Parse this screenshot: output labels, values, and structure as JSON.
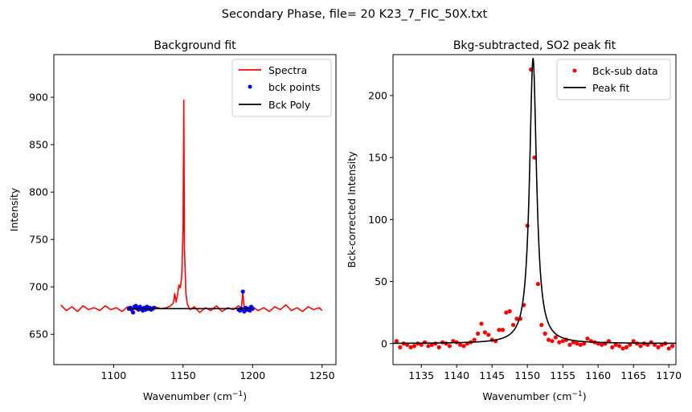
{
  "figure": {
    "suptitle": "Secondary Phase, file= 20 K23_7_FIC_50X.txt"
  },
  "chart_data": [
    {
      "type": "line",
      "title": "Background fit",
      "xlabel": "Wavenumber (cm$^{-1}$)",
      "xlabel_base": "Wavenumber (cm",
      "xlabel_sup": "−1",
      "xlabel_close": ")",
      "ylabel": "Intensity",
      "xlim": [
        1057,
        1260
      ],
      "ylim": [
        618,
        945
      ],
      "xticks": [
        1100,
        1150,
        1200,
        1250
      ],
      "yticks": [
        650,
        700,
        750,
        800,
        850,
        900
      ],
      "grid": false,
      "legend": "top-right",
      "series": [
        {
          "name": "Spectra",
          "style": "line",
          "color": "#ff0000",
          "x": [
            1062,
            1066,
            1070,
            1074,
            1078,
            1082,
            1086,
            1090,
            1094,
            1098,
            1102,
            1106,
            1110,
            1114,
            1118,
            1122,
            1126,
            1130,
            1134,
            1138,
            1141,
            1143,
            1144,
            1145,
            1146,
            1147,
            1148,
            1149,
            1150,
            1150.5,
            1151,
            1152,
            1153,
            1155,
            1158,
            1162,
            1166,
            1170,
            1174,
            1178,
            1182,
            1186,
            1190,
            1192,
            1193,
            1194,
            1196,
            1200,
            1204,
            1208,
            1212,
            1216,
            1220,
            1224,
            1228,
            1232,
            1236,
            1240,
            1244,
            1248,
            1250
          ],
          "y": [
            681,
            675,
            679,
            674,
            680,
            676,
            678,
            675,
            680,
            676,
            678,
            674,
            679,
            677,
            675,
            678,
            676,
            679,
            677,
            678,
            680,
            683,
            693,
            684,
            692,
            702,
            699,
            710,
            760,
            897,
            740,
            694,
            682,
            676,
            679,
            673,
            678,
            675,
            680,
            674,
            678,
            676,
            680,
            678,
            695,
            677,
            676,
            679,
            675,
            678,
            674,
            679,
            676,
            681,
            675,
            678,
            674,
            679,
            676,
            678,
            675
          ]
        },
        {
          "name": "bck points",
          "style": "markers",
          "color": "#0000ff",
          "x": [
            1111,
            1112,
            1113,
            1114,
            1115,
            1116,
            1117,
            1118,
            1119,
            1120,
            1121,
            1122,
            1123,
            1124,
            1125,
            1126,
            1127,
            1128,
            1129,
            1190,
            1191,
            1192,
            1193,
            1194,
            1195,
            1196,
            1197,
            1198,
            1199,
            1200
          ],
          "y": [
            677,
            678,
            676,
            673,
            679,
            680,
            678,
            676,
            679,
            677,
            675,
            678,
            676,
            679,
            677,
            678,
            676,
            677,
            678,
            676,
            675,
            677,
            695,
            674,
            678,
            676,
            677,
            675,
            679,
            677
          ]
        },
        {
          "name": "Bck Poly",
          "style": "line",
          "color": "#000000",
          "x": [
            1111,
            1200
          ],
          "y": [
            677,
            677
          ]
        }
      ]
    },
    {
      "type": "line",
      "title": "Bkg-subtracted, SO2 peak fit",
      "xlabel_base": "Wavenumber (cm",
      "xlabel_sup": "−1",
      "xlabel_close": ")",
      "ylabel": "Bck-corrected Intensity",
      "xlim": [
        1131,
        1171
      ],
      "ylim": [
        -17,
        233
      ],
      "xticks": [
        1135,
        1140,
        1145,
        1150,
        1155,
        1160,
        1165,
        1170
      ],
      "yticks": [
        0,
        50,
        100,
        150,
        200
      ],
      "grid": false,
      "legend": "top-right",
      "series": [
        {
          "name": "Bck-sub data",
          "style": "markers",
          "color": "#ff0000",
          "x": [
            1131.5,
            1132,
            1132.5,
            1133,
            1133.5,
            1134,
            1134.5,
            1135,
            1135.5,
            1136,
            1136.5,
            1137,
            1137.5,
            1138,
            1138.5,
            1139,
            1139.5,
            1140,
            1140.5,
            1141,
            1141.5,
            1142,
            1142.5,
            1143,
            1143.5,
            1144,
            1144.5,
            1145,
            1145.5,
            1146,
            1146.5,
            1147,
            1147.5,
            1148,
            1148.5,
            1149,
            1149.5,
            1150,
            1150.5,
            1151,
            1151.5,
            1152,
            1152.5,
            1153,
            1153.5,
            1154,
            1154.5,
            1155,
            1155.5,
            1156,
            1156.5,
            1157,
            1157.5,
            1158,
            1158.5,
            1159,
            1159.5,
            1160,
            1160.5,
            1161,
            1161.5,
            1162,
            1162.5,
            1163,
            1163.5,
            1164,
            1164.5,
            1165,
            1165.5,
            1166,
            1166.5,
            1167,
            1167.5,
            1168,
            1168.5,
            1169,
            1169.5,
            1170,
            1170.5
          ],
          "y": [
            2,
            -3,
            0,
            -1,
            -3,
            -2,
            0,
            -1,
            1,
            -2,
            -1,
            0,
            -3,
            1,
            0,
            -2,
            2,
            1,
            -1,
            -2,
            0,
            1,
            3,
            8,
            16,
            9,
            7,
            3,
            2,
            11,
            11,
            25,
            26,
            15,
            20,
            20,
            31,
            95,
            221,
            150,
            48,
            15,
            8,
            3,
            2,
            5,
            1,
            2,
            3,
            -1,
            1,
            0,
            -1,
            0,
            4,
            2,
            1,
            0,
            -1,
            0,
            2,
            -3,
            -1,
            -2,
            -4,
            -3,
            -1,
            2,
            0,
            -2,
            0,
            -1,
            1,
            -1,
            -3,
            -1,
            0,
            -4,
            -2
          ]
        },
        {
          "name": "Peak fit",
          "style": "line",
          "color": "#000000",
          "peak_center": 1150.8,
          "peak_height": 230,
          "peak_hwhm": 0.6
        }
      ]
    }
  ]
}
